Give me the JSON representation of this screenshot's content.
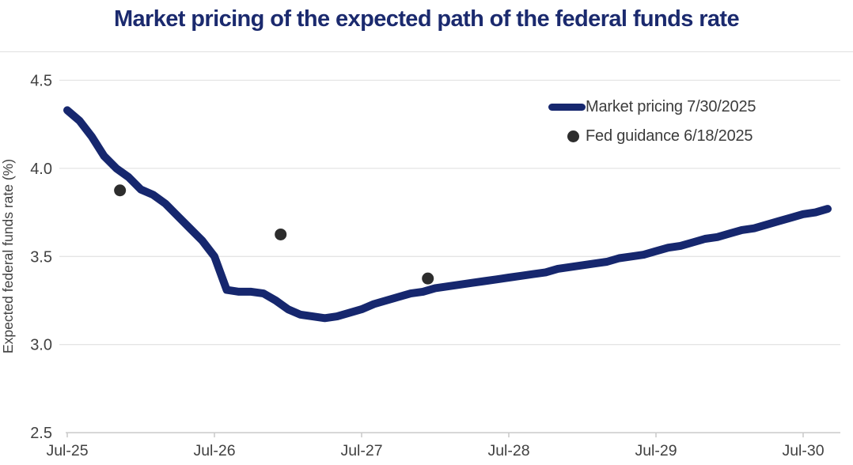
{
  "title": "Market pricing of the expected path of the federal funds rate",
  "colors": {
    "title": "#1b2a6e",
    "line": "#16276e",
    "dot": "#2d2d2d",
    "grid": "#e4e4e4",
    "axis": "#c9c9c9",
    "tick_text": "#414141",
    "legend_text": "#3c3c3c",
    "divider": "#e0e0e0"
  },
  "legend": {
    "items": [
      {
        "label": "Market pricing 7/30/2025",
        "marker": "line"
      },
      {
        "label": "Fed guidance 6/18/2025",
        "marker": "dot"
      }
    ]
  },
  "chart_data": {
    "type": "line",
    "title": "Market pricing of the expected path of the federal funds rate",
    "xlabel": "",
    "ylabel": "Expected federal funds rate (%)",
    "ylim": [
      2.5,
      4.5
    ],
    "ytick_labels": [
      "4.5",
      "4.0",
      "3.5",
      "3.0",
      "2.5"
    ],
    "xtick_labels": [
      "Jul-25",
      "Jul-26",
      "Jul-27",
      "Jul-28",
      "Jul-29",
      "Jul-30"
    ],
    "grid": "horizontal-only",
    "legend_position": "upper-right-inside",
    "x_unit": "months since Jul-2025",
    "series": [
      {
        "name": "Market pricing 7/30/2025",
        "type": "line",
        "start": "Jul-2025",
        "frequency": "monthly",
        "values": [
          4.33,
          4.27,
          4.18,
          4.07,
          4.0,
          3.95,
          3.88,
          3.85,
          3.8,
          3.73,
          3.66,
          3.59,
          3.5,
          3.31,
          3.3,
          3.3,
          3.29,
          3.25,
          3.2,
          3.17,
          3.16,
          3.15,
          3.16,
          3.18,
          3.2,
          3.23,
          3.25,
          3.27,
          3.29,
          3.3,
          3.32,
          3.33,
          3.34,
          3.35,
          3.36,
          3.37,
          3.38,
          3.39,
          3.4,
          3.41,
          3.43,
          3.44,
          3.45,
          3.46,
          3.47,
          3.49,
          3.5,
          3.51,
          3.53,
          3.55,
          3.56,
          3.58,
          3.6,
          3.61,
          3.63,
          3.65,
          3.66,
          3.68,
          3.7,
          3.72,
          3.74,
          3.75,
          3.77
        ]
      },
      {
        "name": "Fed guidance 6/18/2025",
        "type": "scatter",
        "points": [
          {
            "date": "12/2025",
            "value": 3.875,
            "x_months": 4.3
          },
          {
            "date": "12/2026",
            "value": 3.625,
            "x_months": 17.4
          },
          {
            "date": "12/2027",
            "value": 3.375,
            "x_months": 29.4
          }
        ]
      }
    ]
  }
}
